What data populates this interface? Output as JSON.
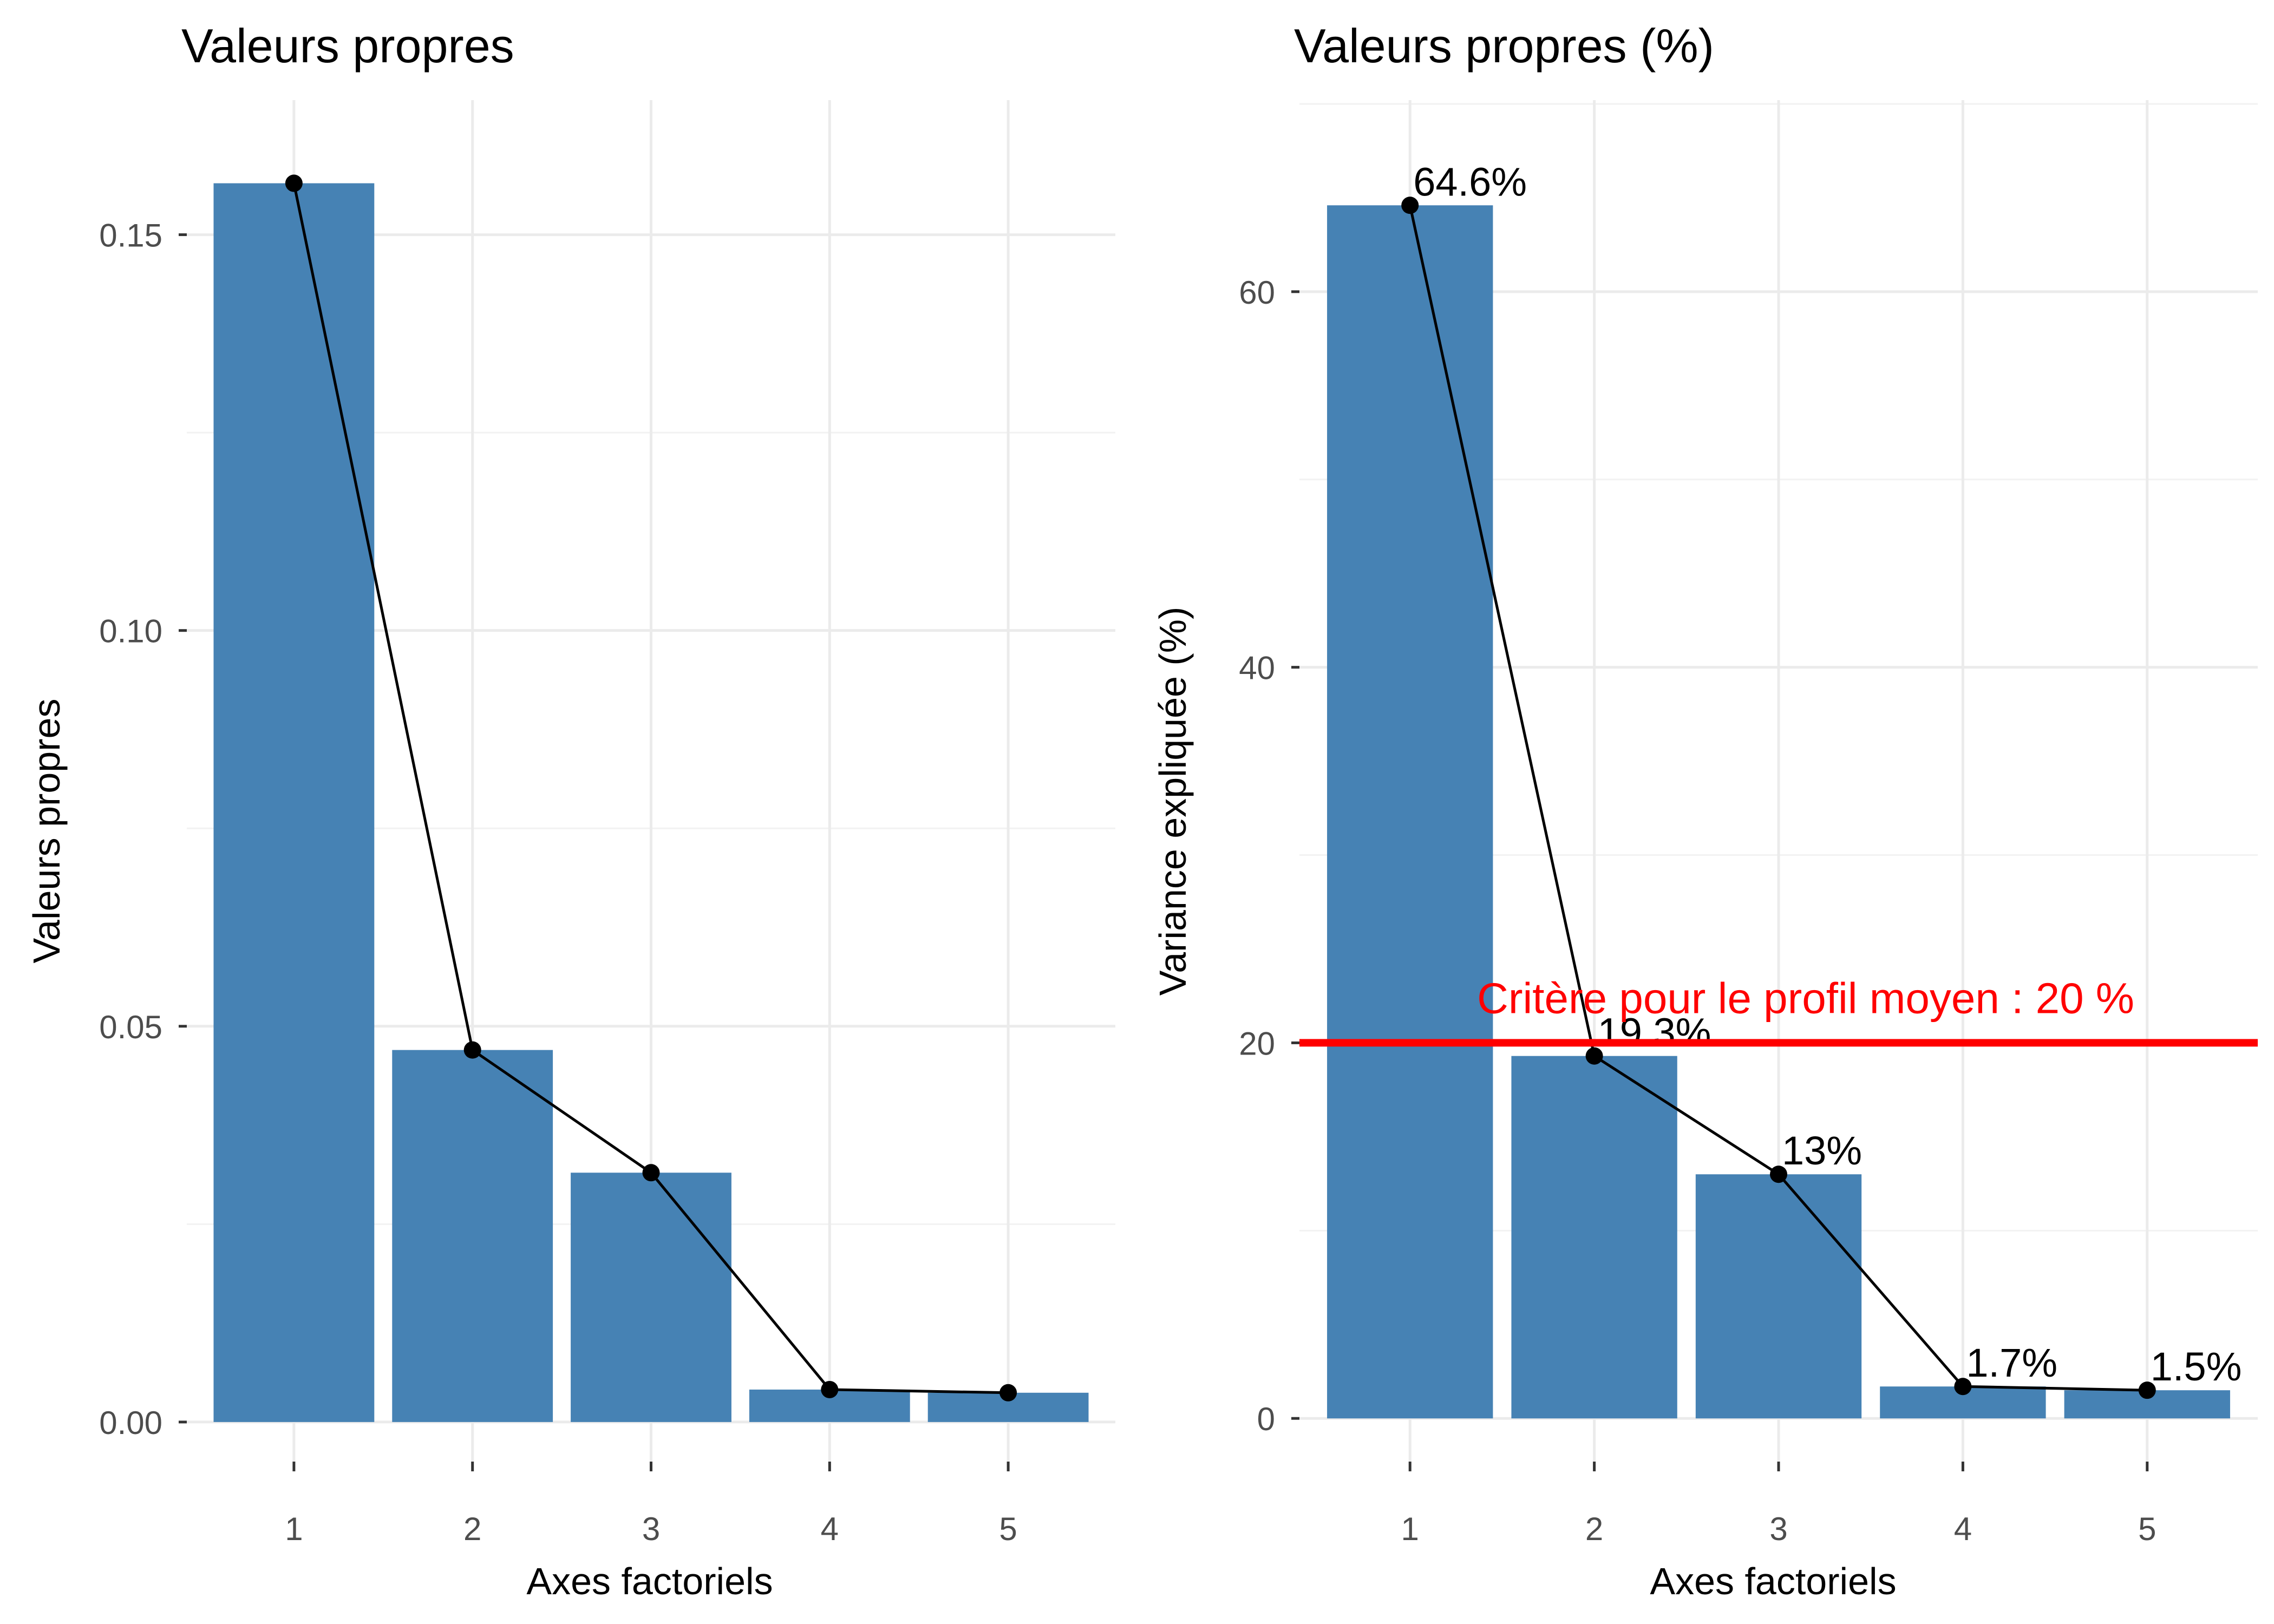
{
  "chart_data": [
    {
      "type": "bar",
      "title": "Valeurs propres",
      "xlabel": "Axes factoriels",
      "ylabel": "Valeurs propres",
      "categories": [
        "1",
        "2",
        "3",
        "4",
        "5"
      ],
      "values": [
        0.1565,
        0.047,
        0.0315,
        0.0041,
        0.0037
      ],
      "line_overlay": true,
      "ylim": [
        -0.005,
        0.167
      ],
      "yticks": [
        0.0,
        0.05,
        0.1,
        0.15
      ],
      "ytick_labels": [
        "0.00",
        "0.05",
        "0.10",
        "0.15"
      ],
      "grid": true,
      "bar_color": "#4682B4",
      "line_color": "#000000"
    },
    {
      "type": "bar",
      "title": "Valeurs propres (%)",
      "xlabel": "Axes factoriels",
      "ylabel": "Variance expliquée (%)",
      "categories": [
        "1",
        "2",
        "3",
        "4",
        "5"
      ],
      "values": [
        64.6,
        19.3,
        13.0,
        1.7,
        1.5
      ],
      "data_labels": [
        "64.6%",
        "19.3%",
        "13%",
        "1.7%",
        "1.5%"
      ],
      "line_overlay": true,
      "ylim": [
        -2.3,
        70.2
      ],
      "yticks": [
        0,
        20,
        40,
        60
      ],
      "ytick_labels": [
        "0",
        "20",
        "40",
        "60"
      ],
      "grid": true,
      "bar_color": "#4682B4",
      "line_color": "#000000",
      "reference_line": {
        "value": 20,
        "label": "Critère pour le profil moyen : 20 %",
        "color": "#FF0000"
      }
    }
  ]
}
